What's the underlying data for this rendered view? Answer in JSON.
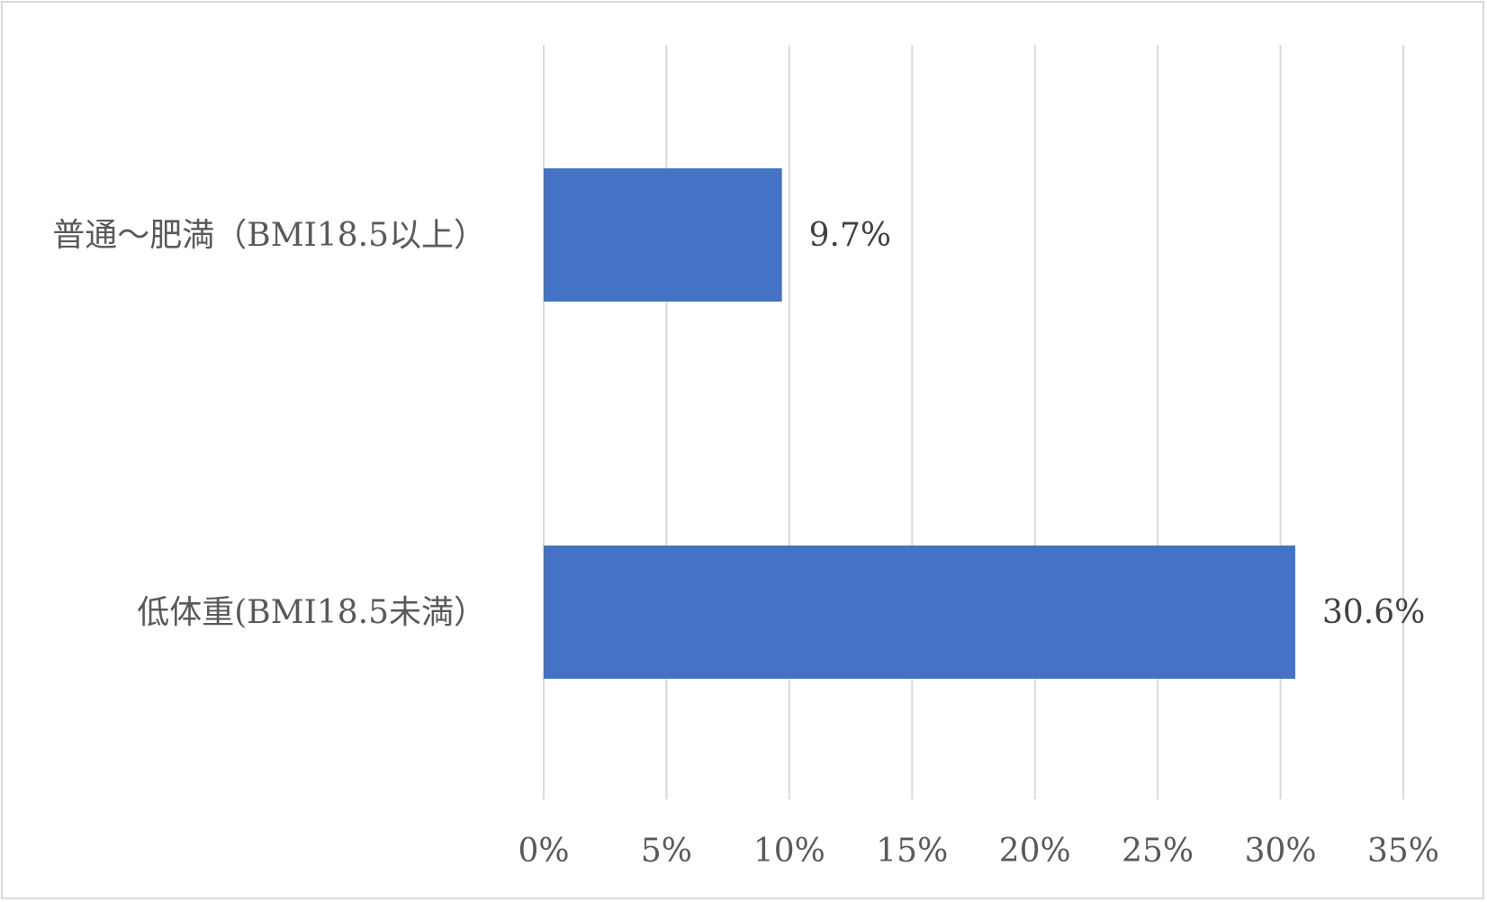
{
  "chart_data": {
    "type": "bar",
    "orientation": "horizontal",
    "categories": [
      "普通～肥満（BMI18.5以上）",
      "低体重(BMI18.5未満）"
    ],
    "values": [
      9.7,
      30.6
    ],
    "data_labels": [
      "9.7%",
      "30.6%"
    ],
    "title": "",
    "xlabel": "",
    "ylabel": "",
    "xlim": [
      0,
      35
    ],
    "xticks": [
      0,
      5,
      10,
      15,
      20,
      25,
      30,
      35
    ],
    "xtick_labels": [
      "0%",
      "5%",
      "10%",
      "15%",
      "20%",
      "25%",
      "30%",
      "35%"
    ],
    "grid": "vertical",
    "legend": "none",
    "bar_color": "#4472c4",
    "grid_color": "#d9d9d9"
  }
}
